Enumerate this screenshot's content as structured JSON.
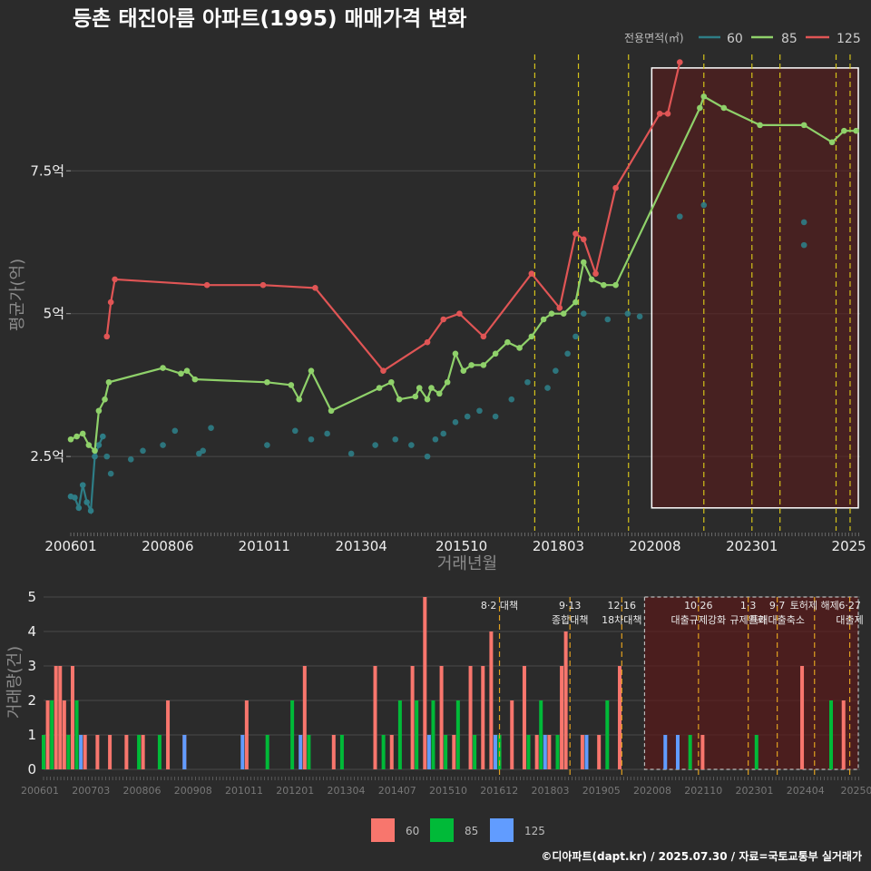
{
  "title": "등촌 태진아름 아파트(1995) 매매가격 변화",
  "caption": "©디아파트(dapt.kr) / 2025.07.30 / 자료=국토교통부 실거래가",
  "colors": {
    "background": "#2b2b2b",
    "grid": "#4a4a4a",
    "s60": "#2e7d86",
    "s85": "#8fd16a",
    "s125": "#e05555",
    "vol60": "#f8766d",
    "vol85": "#00ba38",
    "vol125": "#619cff",
    "dash": "#d4c21a",
    "dashBottom": "#e0a020",
    "shade": "#5a1a1a"
  },
  "legend_top": {
    "title": "전용면적(㎡)",
    "items": [
      "60",
      "85",
      "125"
    ]
  },
  "legend_bottom": {
    "items": [
      "60",
      "85",
      "125"
    ]
  },
  "chart_data": [
    {
      "type": "line",
      "title": "등촌 태진아름 아파트(1995) 매매가격 변화",
      "xlabel": "거래년월",
      "ylabel": "평균가(억)",
      "x_domain": [
        2006.0,
        2025.7
      ],
      "ylim": [
        1.2,
        9.6
      ],
      "yticks": [
        2.5,
        5,
        7.5
      ],
      "ytick_labels": [
        "2.5억",
        "5억",
        "7.5억"
      ],
      "xticks": [
        2006.0,
        2008.42,
        2010.83,
        2013.25,
        2015.75,
        2018.17,
        2020.58,
        2023.0,
        2025.42
      ],
      "xtick_labels": [
        "200601",
        "200806",
        "201011",
        "201304",
        "201510",
        "201803",
        "202008",
        "202301",
        "2025"
      ],
      "policy_lines": [
        2017.58,
        2018.67,
        2019.92,
        2021.8,
        2023.0,
        2023.7,
        2025.1,
        2025.45
      ],
      "highlight_range": {
        "x": [
          2020.5,
          2025.7
        ],
        "y": [
          1.6,
          9.3
        ]
      },
      "series": [
        {
          "name": "60",
          "x": [
            2006.0,
            2006.1,
            2006.2,
            2006.3,
            2006.4,
            2006.5,
            2006.6,
            2006.7,
            2006.8
          ],
          "values": [
            1.8,
            1.78,
            1.6,
            2.0,
            1.7,
            1.55,
            2.5,
            2.7,
            2.85
          ],
          "points": [
            [
              2006.9,
              2.5
            ],
            [
              2007.0,
              2.2
            ],
            [
              2007.5,
              2.45
            ],
            [
              2007.8,
              2.6
            ],
            [
              2008.3,
              2.7
            ],
            [
              2008.6,
              2.95
            ],
            [
              2009.2,
              2.55
            ],
            [
              2009.3,
              2.6
            ],
            [
              2009.5,
              3.0
            ],
            [
              2010.9,
              2.7
            ],
            [
              2011.6,
              2.95
            ],
            [
              2012.0,
              2.8
            ],
            [
              2012.4,
              2.9
            ],
            [
              2013.0,
              2.55
            ],
            [
              2013.6,
              2.7
            ],
            [
              2014.1,
              2.8
            ],
            [
              2014.5,
              2.7
            ],
            [
              2014.9,
              2.5
            ],
            [
              2015.1,
              2.8
            ],
            [
              2015.3,
              2.9
            ],
            [
              2015.6,
              3.1
            ],
            [
              2015.9,
              3.2
            ],
            [
              2016.2,
              3.3
            ],
            [
              2016.6,
              3.2
            ],
            [
              2017.0,
              3.5
            ],
            [
              2017.4,
              3.8
            ],
            [
              2017.9,
              3.7
            ],
            [
              2018.1,
              4.0
            ],
            [
              2018.4,
              4.3
            ],
            [
              2018.6,
              4.6
            ],
            [
              2018.8,
              5.0
            ],
            [
              2019.4,
              4.9
            ],
            [
              2019.9,
              5.0
            ],
            [
              2020.2,
              4.95
            ],
            [
              2021.2,
              6.7
            ],
            [
              2021.8,
              6.9
            ],
            [
              2024.3,
              6.6
            ],
            [
              2024.3,
              6.2
            ]
          ]
        },
        {
          "name": "85",
          "x": [
            2006.0,
            2006.15,
            2006.3,
            2006.45,
            2006.6,
            2006.7,
            2006.85,
            2006.95,
            2008.3,
            2008.75,
            2008.9,
            2009.1,
            2010.9,
            2011.5,
            2011.7,
            2012.0,
            2012.5,
            2013.7,
            2014.0,
            2014.2,
            2014.6,
            2014.7,
            2014.9,
            2015.0,
            2015.2,
            2015.4,
            2015.6,
            2015.8,
            2016.0,
            2016.3,
            2016.6,
            2016.9,
            2017.2,
            2017.5,
            2017.8,
            2018.0,
            2018.3,
            2018.6,
            2018.8,
            2019.0,
            2019.3,
            2019.6,
            2021.7,
            2021.8,
            2022.3,
            2023.2,
            2024.3,
            2025.0,
            2025.3,
            2025.6
          ],
          "values": [
            2.8,
            2.85,
            2.9,
            2.7,
            2.6,
            3.3,
            3.5,
            3.8,
            4.05,
            3.95,
            4.0,
            3.85,
            3.8,
            3.75,
            3.5,
            4.0,
            3.3,
            3.7,
            3.8,
            3.5,
            3.55,
            3.7,
            3.5,
            3.7,
            3.6,
            3.8,
            4.3,
            4.0,
            4.1,
            4.1,
            4.3,
            4.5,
            4.4,
            4.6,
            4.9,
            5.0,
            5.0,
            5.2,
            5.9,
            5.6,
            5.5,
            5.5,
            8.6,
            8.8,
            8.6,
            8.3,
            8.3,
            8.0,
            8.2,
            8.2
          ]
        },
        {
          "name": "125",
          "x": [
            2006.9,
            2007.0,
            2007.1,
            2009.4,
            2010.8,
            2012.1,
            2013.8,
            2014.9,
            2015.3,
            2015.7,
            2016.3,
            2017.5,
            2018.2,
            2018.6,
            2018.8,
            2019.1,
            2019.6,
            2020.7,
            2020.9,
            2021.2
          ],
          "values": [
            4.6,
            5.2,
            5.6,
            5.5,
            5.5,
            5.45,
            4.0,
            4.5,
            4.9,
            5.0,
            4.6,
            5.7,
            5.1,
            6.4,
            6.3,
            5.7,
            7.2,
            8.5,
            8.5,
            9.4
          ]
        }
      ]
    },
    {
      "type": "bar",
      "ylabel": "거래량(건)",
      "ylim": [
        0,
        5
      ],
      "yticks": [
        0,
        1,
        2,
        3,
        4,
        5
      ],
      "ytick_labels": [
        "0",
        "1",
        "2",
        "3",
        "4",
        "5"
      ],
      "xtick_labels": [
        "200601",
        "200703",
        "200806",
        "200908",
        "201011",
        "201201",
        "201304",
        "201407",
        "201510",
        "201612",
        "201803",
        "201905",
        "202008",
        "202110",
        "202301",
        "202404",
        "20250"
      ],
      "x_domain": [
        2006.0,
        2025.7
      ],
      "annotations": [
        {
          "x": 2017.0,
          "lines": [
            "8·2 대책"
          ]
        },
        {
          "x": 2018.7,
          "lines": [
            "9·13",
            "종합대책"
          ]
        },
        {
          "x": 2019.95,
          "lines": [
            "12·16",
            "18차대책"
          ]
        },
        {
          "x": 2021.8,
          "lines": [
            "10·26",
            "대출규제강화"
          ]
        },
        {
          "x": 2023.0,
          "lines": [
            "1·3",
            "규제완화"
          ]
        },
        {
          "x": 2023.7,
          "lines": [
            "9·7",
            "특례대출축소"
          ]
        },
        {
          "x": 2024.6,
          "lines": [
            "토허제 해제"
          ]
        },
        {
          "x": 2025.45,
          "lines": [
            "6·27",
            "대출제"
          ]
        }
      ],
      "series": [
        {
          "name": "60",
          "x": [
            2006.1,
            2006.3,
            2006.4,
            2006.5,
            2006.7,
            2007.0,
            2007.3,
            2007.6,
            2008.0,
            2008.4,
            2009.0,
            2009.4,
            2010.9,
            2012.3,
            2013.0,
            2014.0,
            2014.4,
            2014.9,
            2015.2,
            2015.6,
            2015.9,
            2016.3,
            2016.6,
            2016.8,
            2017.3,
            2017.6,
            2017.9,
            2018.2,
            2018.5,
            2018.6,
            2019.0,
            2019.4,
            2019.9,
            2021.9,
            2024.3,
            2025.3
          ],
          "values": [
            2,
            3,
            3,
            2,
            3,
            1,
            1,
            1,
            1,
            1,
            2,
            1,
            2,
            3,
            1,
            3,
            1,
            3,
            5,
            3,
            1,
            3,
            3,
            4,
            2,
            3,
            1,
            1,
            3,
            4,
            1,
            1,
            3,
            1,
            3,
            2
          ]
        },
        {
          "name": "85",
          "x": [
            2006.0,
            2006.2,
            2006.6,
            2006.8,
            2008.3,
            2008.8,
            2011.4,
            2012.0,
            2012.4,
            2013.2,
            2014.2,
            2014.6,
            2015.0,
            2015.4,
            2015.7,
            2016.0,
            2016.4,
            2017.0,
            2017.7,
            2018.0,
            2018.4,
            2019.6,
            2021.6,
            2023.2,
            2025.0
          ],
          "values": [
            1,
            2,
            1,
            2,
            1,
            1,
            1,
            2,
            1,
            1,
            1,
            2,
            2,
            2,
            1,
            2,
            1,
            1,
            1,
            2,
            1,
            2,
            1,
            1,
            2
          ]
        },
        {
          "name": "125",
          "x": [
            2006.9,
            2009.4,
            2010.8,
            2012.2,
            2015.3,
            2016.9,
            2018.1,
            2019.1,
            2021.0,
            2021.3
          ],
          "values": [
            1,
            1,
            1,
            1,
            1,
            1,
            1,
            1,
            1,
            1
          ]
        }
      ]
    }
  ]
}
